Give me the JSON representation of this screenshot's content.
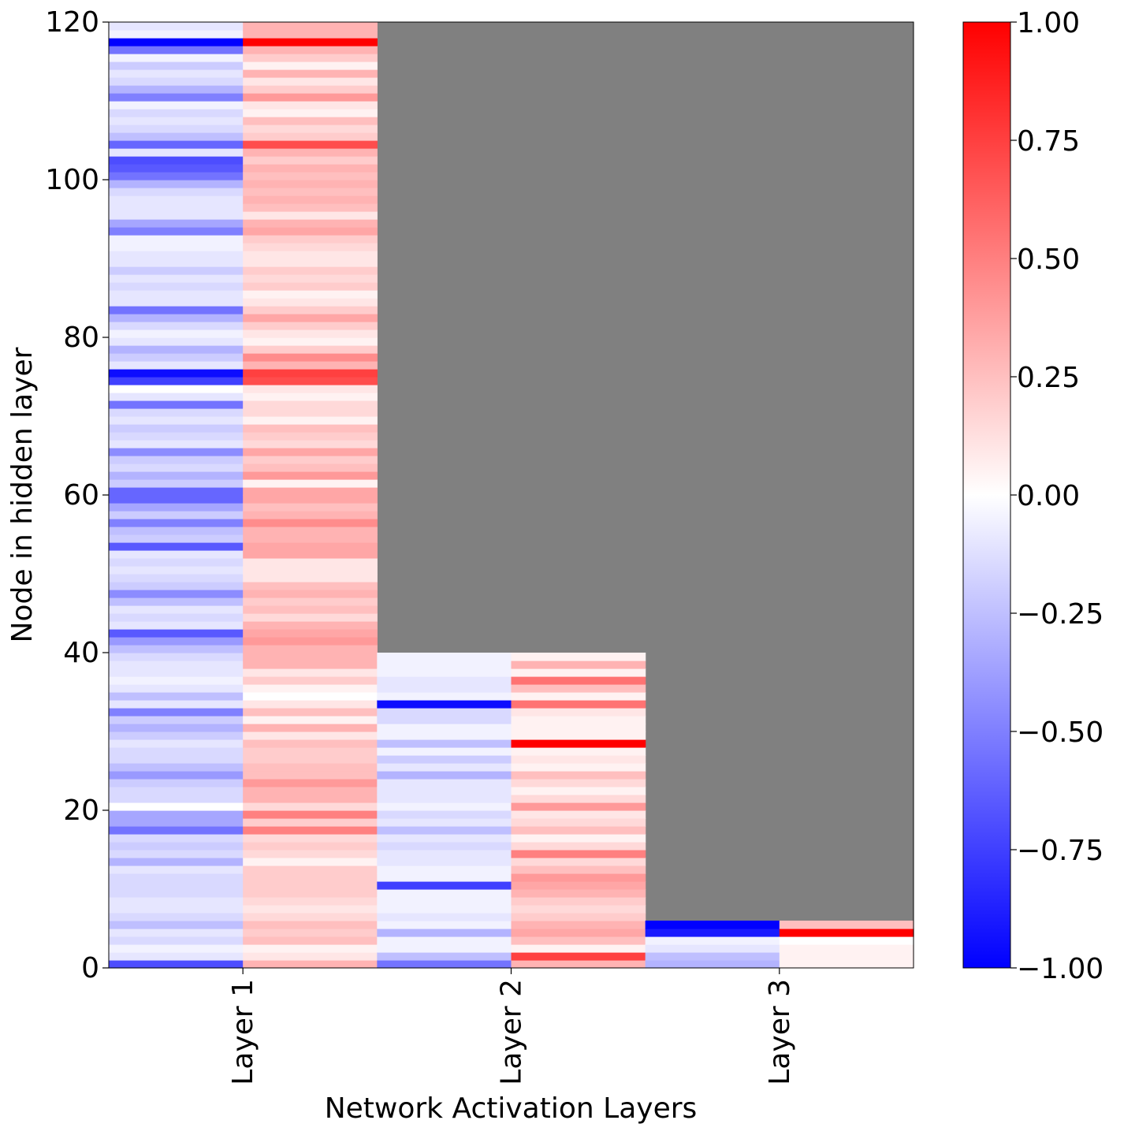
{
  "chart_data": {
    "type": "heatmap",
    "title": "",
    "xlabel": "Network Activation Layers",
    "ylabel": "Node in hidden layer",
    "ylim": [
      0,
      120
    ],
    "yticks": [
      "0",
      "20",
      "40",
      "60",
      "80",
      "100",
      "120"
    ],
    "categories": [
      "Layer 1",
      "Layer 2",
      "Layer 3"
    ],
    "colormap": "bwr",
    "colors": {
      "min": "#0000ff",
      "mid": "#ffffff",
      "max": "#ff0000",
      "masked": "#808080"
    },
    "colorbar": {
      "range": [
        -1.0,
        1.0
      ],
      "ticks": [
        "−1.00",
        "−0.75",
        "−0.50",
        "−0.25",
        "0.00",
        "0.25",
        "0.50",
        "0.75",
        "1.00"
      ]
    },
    "series": [
      {
        "layer": "Layer 1",
        "nodes": 120,
        "left_column": [
          -0.7,
          -0.1,
          -0.05,
          -0.15,
          -0.1,
          -0.25,
          -0.15,
          -0.1,
          -0.1,
          -0.15,
          -0.15,
          -0.15,
          -0.1,
          -0.3,
          -0.15,
          -0.2,
          -0.15,
          -0.55,
          -0.35,
          -0.35,
          0.0,
          -0.15,
          -0.15,
          -0.2,
          -0.4,
          -0.25,
          -0.15,
          -0.15,
          -0.1,
          -0.2,
          -0.3,
          -0.2,
          -0.5,
          -0.1,
          -0.25,
          -0.1,
          -0.05,
          -0.1,
          -0.1,
          -0.15,
          -0.25,
          -0.4,
          -0.65,
          -0.1,
          -0.15,
          -0.1,
          -0.25,
          -0.45,
          -0.2,
          -0.15,
          -0.1,
          -0.15,
          -0.1,
          -0.65,
          -0.2,
          -0.25,
          -0.5,
          -0.2,
          -0.35,
          -0.6,
          -0.6,
          -0.2,
          -0.3,
          -0.15,
          -0.2,
          -0.45,
          -0.1,
          -0.15,
          -0.2,
          -0.1,
          -0.15,
          -0.55,
          -0.1,
          0.0,
          -0.75,
          -0.95,
          -0.1,
          -0.2,
          -0.3,
          -0.1,
          -0.05,
          -0.15,
          -0.3,
          -0.55,
          -0.1,
          -0.1,
          -0.15,
          -0.1,
          -0.2,
          -0.1,
          -0.1,
          -0.05,
          -0.05,
          -0.5,
          -0.35,
          -0.1,
          -0.1,
          -0.1,
          -0.15,
          -0.3,
          -0.55,
          -0.65,
          -0.7,
          -0.1,
          -0.6,
          -0.25,
          -0.15,
          -0.1,
          -0.15,
          -0.05,
          -0.5,
          -0.3,
          -0.15,
          -0.1,
          -0.2,
          -0.05,
          -0.55,
          -1.0,
          -0.05,
          -0.1
        ],
        "right_column": [
          0.3,
          0.1,
          0.05,
          0.25,
          0.2,
          0.25,
          0.15,
          0.1,
          0.15,
          0.2,
          0.2,
          0.2,
          0.2,
          0.05,
          0.15,
          0.2,
          0.15,
          0.5,
          0.2,
          0.5,
          0.15,
          0.3,
          0.3,
          0.4,
          0.25,
          0.25,
          0.2,
          0.2,
          0.25,
          0.1,
          0.3,
          0.05,
          0.25,
          0.1,
          0.0,
          0.05,
          0.2,
          0.1,
          0.3,
          0.3,
          0.3,
          0.4,
          0.35,
          0.3,
          0.15,
          0.25,
          0.2,
          0.3,
          0.25,
          0.1,
          0.1,
          0.1,
          0.35,
          0.35,
          0.3,
          0.3,
          0.45,
          0.3,
          0.25,
          0.35,
          0.35,
          0.05,
          0.4,
          0.25,
          0.2,
          0.35,
          0.15,
          0.2,
          0.25,
          0.05,
          0.15,
          0.15,
          0.05,
          0.1,
          0.7,
          0.75,
          0.3,
          0.45,
          0.2,
          0.05,
          0.1,
          0.2,
          0.35,
          0.2,
          0.1,
          0.05,
          0.2,
          0.15,
          0.2,
          0.1,
          0.1,
          0.15,
          0.2,
          0.35,
          0.3,
          0.1,
          0.25,
          0.3,
          0.25,
          0.3,
          0.25,
          0.3,
          0.2,
          0.3,
          0.7,
          0.2,
          0.15,
          0.25,
          0.05,
          0.1,
          0.4,
          0.2,
          0.1,
          0.3,
          0.05,
          0.2,
          0.3,
          1.0,
          0.3,
          0.3
        ]
      },
      {
        "layer": "Layer 2",
        "nodes": 40,
        "left_column": [
          -0.55,
          -0.25,
          -0.05,
          -0.05,
          -0.3,
          -0.05,
          -0.1,
          -0.05,
          -0.05,
          -0.05,
          -0.75,
          -0.05,
          -0.05,
          -0.1,
          -0.1,
          -0.15,
          -0.1,
          -0.25,
          -0.1,
          -0.15,
          -0.05,
          -0.1,
          -0.1,
          -0.1,
          -0.3,
          -0.1,
          -0.2,
          -0.05,
          -0.25,
          -0.05,
          -0.05,
          -0.15,
          -0.15,
          -0.95,
          -0.05,
          -0.1,
          -0.1,
          -0.05,
          -0.05,
          -0.05
        ],
        "right_column": [
          0.3,
          0.75,
          0.05,
          0.25,
          0.35,
          0.3,
          0.2,
          0.15,
          0.2,
          0.3,
          0.35,
          0.4,
          0.25,
          0.15,
          0.5,
          0.15,
          0.05,
          0.25,
          0.15,
          0.1,
          0.4,
          0.15,
          0.05,
          0.15,
          0.25,
          0.05,
          0.1,
          0.05,
          1.0,
          0.05,
          0.05,
          0.05,
          0.1,
          0.55,
          0.05,
          0.25,
          0.55,
          0.05,
          0.3,
          0.05
        ]
      },
      {
        "layer": "Layer 3",
        "nodes": 6,
        "left_column": [
          -0.3,
          -0.25,
          -0.1,
          -0.05,
          -0.9,
          -1.0
        ],
        "right_column": [
          0.05,
          0.05,
          0.05,
          0.0,
          1.0,
          0.25
        ]
      }
    ]
  }
}
